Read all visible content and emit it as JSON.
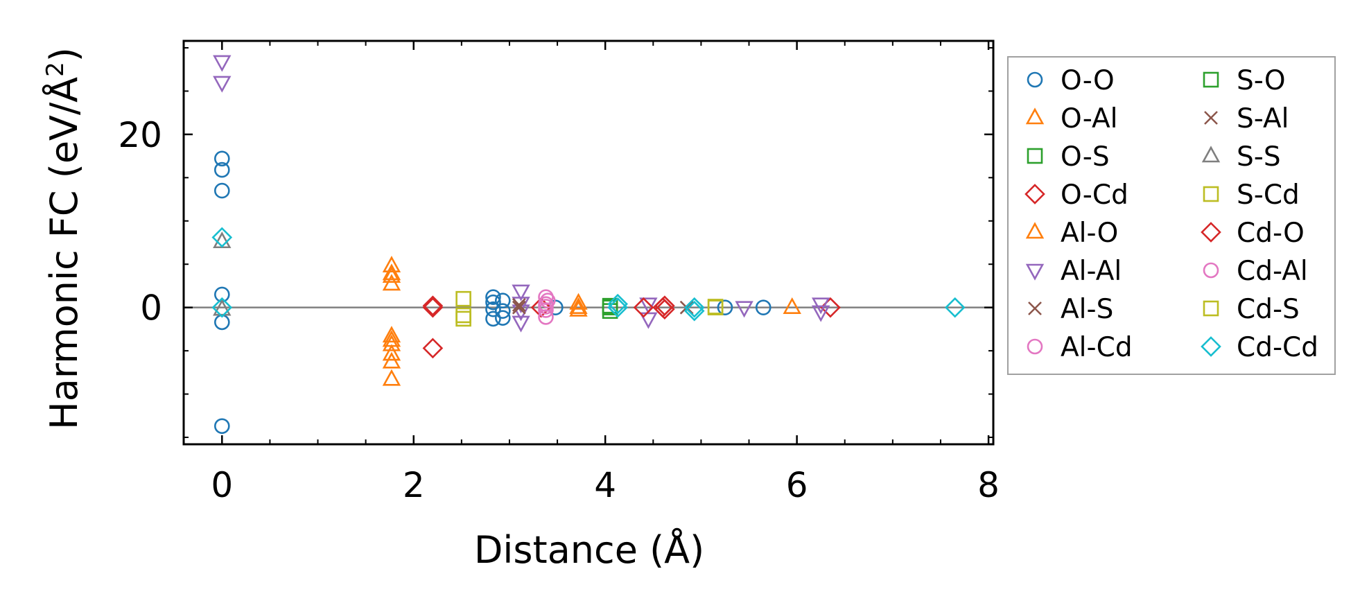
{
  "chart_data": {
    "type": "scatter",
    "xlabel": "Distance (Å)",
    "ylabel_main": "Harmonic FC (eV/Å",
    "ylabel_sup": "2",
    "ylabel_close": ")",
    "xlim": [
      -0.4,
      8.05
    ],
    "ylim": [
      -15.8,
      30.8
    ],
    "xticks": [
      0,
      2,
      4,
      6,
      8
    ],
    "xtick_labels": [
      "0",
      "2",
      "4",
      "6",
      "8"
    ],
    "yticks": [
      0,
      20
    ],
    "ytick_labels": [
      "0",
      "20"
    ],
    "x_minor_step": 0.5,
    "y_minor_step": 5,
    "zero_line": true,
    "grid": false,
    "legend_position": "outside-right",
    "legend_columns": 2,
    "series": [
      {
        "name": "O-O",
        "marker": "circle",
        "color": "#1f77b4",
        "points": [
          [
            0,
            17.2
          ],
          [
            0,
            15.9
          ],
          [
            0,
            13.5
          ],
          [
            0,
            1.5
          ],
          [
            0,
            -1.7
          ],
          [
            0,
            -13.7
          ],
          [
            2.83,
            1.2
          ],
          [
            2.83,
            0.6
          ],
          [
            2.83,
            -0.2
          ],
          [
            2.83,
            -1.3
          ],
          [
            2.93,
            0.8
          ],
          [
            2.93,
            -0.4
          ],
          [
            2.93,
            -1.2
          ],
          [
            3.48,
            0
          ],
          [
            5.25,
            0
          ],
          [
            5.65,
            0
          ]
        ]
      },
      {
        "name": "O-Al",
        "marker": "triangle-up",
        "color": "#ff7f0e",
        "points": [
          [
            1.77,
            4.8
          ],
          [
            1.77,
            3.6
          ],
          [
            1.77,
            2.7
          ],
          [
            1.77,
            -3.3
          ],
          [
            1.77,
            -4.3
          ],
          [
            1.77,
            -5.4
          ],
          [
            1.77,
            -6.3
          ],
          [
            1.77,
            -8.3
          ],
          [
            3.72,
            0.5
          ],
          [
            3.72,
            -0.3
          ],
          [
            5.95,
            0
          ]
        ]
      },
      {
        "name": "O-S",
        "marker": "square",
        "color": "#2ca02c",
        "points": [
          [
            4.05,
            -0.4
          ],
          [
            4.05,
            0.2
          ]
        ]
      },
      {
        "name": "O-Cd",
        "marker": "diamond",
        "color": "#d62728",
        "points": [
          [
            2.2,
            0
          ],
          [
            2.2,
            -4.7
          ],
          [
            3.33,
            0
          ],
          [
            4.6,
            0
          ],
          [
            6.35,
            0
          ]
        ]
      },
      {
        "name": "Al-O",
        "marker": "triangle-up",
        "color": "#ff7f0e",
        "points": [
          [
            1.77,
            3.9
          ],
          [
            1.77,
            -3.8
          ],
          [
            3.72,
            0
          ]
        ]
      },
      {
        "name": "Al-Al",
        "marker": "triangle-down",
        "color": "#9467bd",
        "points": [
          [
            0,
            28.4
          ],
          [
            0,
            26.0
          ],
          [
            3.12,
            1.9
          ],
          [
            3.12,
            0.5
          ],
          [
            3.12,
            -0.4
          ],
          [
            3.12,
            -1.7
          ],
          [
            4.45,
            0.4
          ],
          [
            4.45,
            -1.3
          ],
          [
            5.45,
            0
          ],
          [
            6.25,
            0.4
          ],
          [
            6.25,
            -0.5
          ]
        ]
      },
      {
        "name": "Al-S",
        "marker": "x",
        "color": "#8c564b",
        "points": [
          [
            3.1,
            0
          ],
          [
            4.85,
            0
          ]
        ]
      },
      {
        "name": "Al-Cd",
        "marker": "circle",
        "color": "#e377c2",
        "points": [
          [
            3.38,
            1.2
          ],
          [
            3.38,
            0.4
          ],
          [
            3.38,
            -0.3
          ],
          [
            3.38,
            -1.1
          ],
          [
            3.4,
            0.8
          ]
        ]
      },
      {
        "name": "S-O",
        "marker": "square",
        "color": "#2ca02c",
        "points": [
          [
            4.05,
            0
          ]
        ]
      },
      {
        "name": "S-Al",
        "marker": "x",
        "color": "#8c564b",
        "points": [
          [
            3.1,
            0.3
          ]
        ]
      },
      {
        "name": "S-S",
        "marker": "triangle-up",
        "color": "#7f7f7f",
        "points": [
          [
            0,
            7.6
          ],
          [
            0,
            -0.2
          ]
        ]
      },
      {
        "name": "S-Cd",
        "marker": "square",
        "color": "#bcbd22",
        "points": [
          [
            2.52,
            1.0
          ],
          [
            2.52,
            -1.3
          ],
          [
            5.15,
            0
          ]
        ]
      },
      {
        "name": "Cd-O",
        "marker": "diamond",
        "color": "#d62728",
        "points": [
          [
            2.2,
            0.2
          ],
          [
            4.4,
            0
          ],
          [
            4.62,
            0.2
          ],
          [
            4.62,
            -0.2
          ]
        ]
      },
      {
        "name": "Cd-Al",
        "marker": "circle",
        "color": "#e377c2",
        "points": [
          [
            3.38,
            0.1
          ]
        ]
      },
      {
        "name": "Cd-S",
        "marker": "square",
        "color": "#bcbd22",
        "points": [
          [
            2.52,
            -0.9
          ],
          [
            5.15,
            0.1
          ]
        ]
      },
      {
        "name": "Cd-Cd",
        "marker": "diamond",
        "color": "#17becf",
        "points": [
          [
            0,
            8.1
          ],
          [
            0,
            0
          ],
          [
            4.13,
            0
          ],
          [
            4.13,
            0.4
          ],
          [
            4.93,
            0
          ],
          [
            4.93,
            -0.4
          ],
          [
            7.65,
            0
          ]
        ]
      }
    ]
  }
}
